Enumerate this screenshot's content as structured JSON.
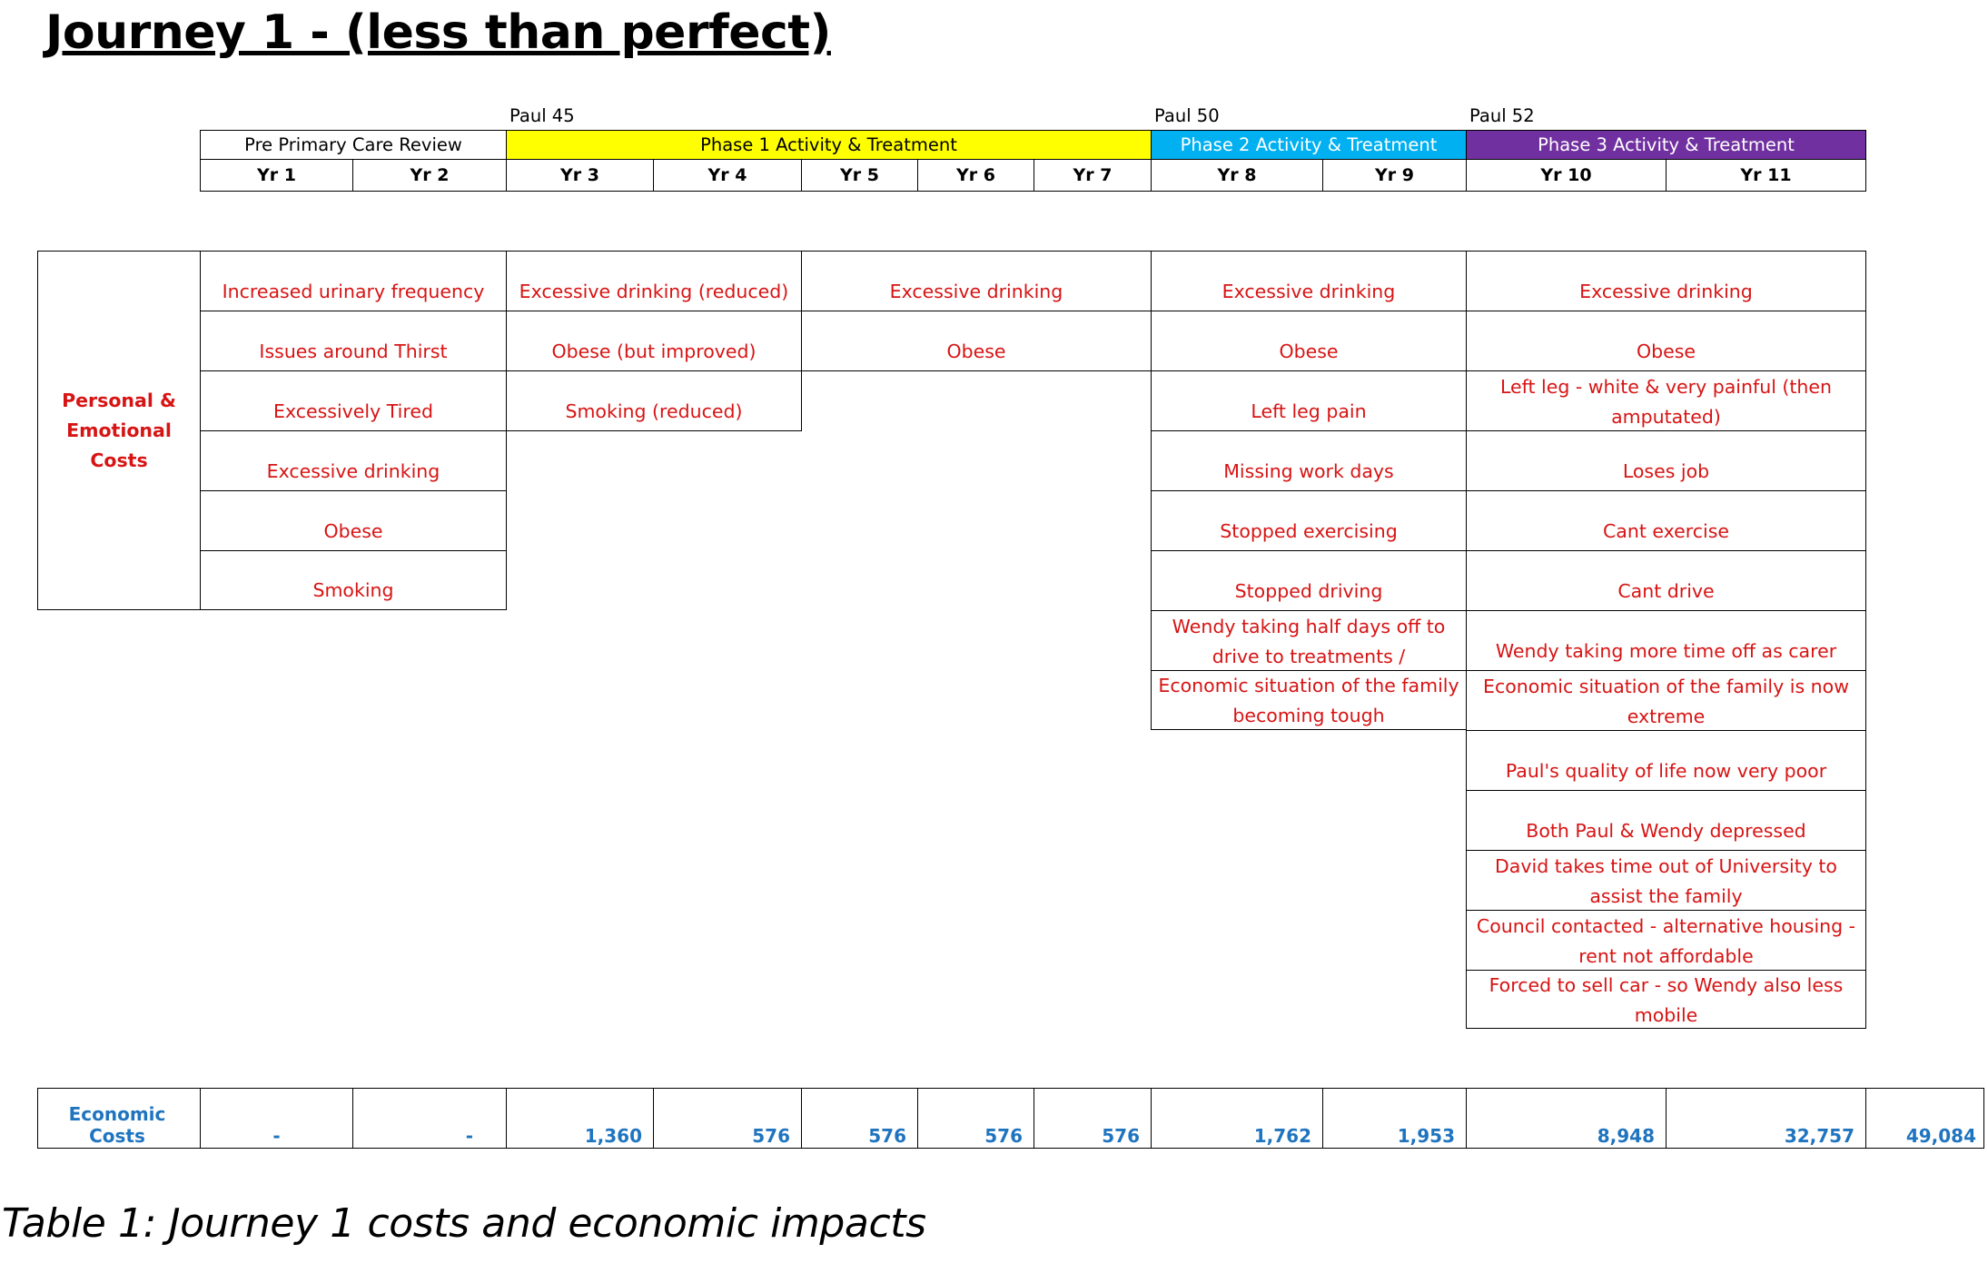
{
  "title": "Journey 1 - (less than perfect)",
  "age_markers": [
    "Paul 45",
    "Paul 50",
    "Paul 52"
  ],
  "phases": {
    "pre": "Pre Primary Care Review",
    "phase1": "Phase 1 Activity & Treatment",
    "phase2": "Phase 2 Activity & Treatment",
    "phase3": "Phase 3 Activity & Treatment"
  },
  "colors": {
    "phase1": "#ffff00",
    "phase2": "#00b0f0",
    "phase3": "#7030a0",
    "red_text": "#d71414",
    "blue_text": "#1f74bf"
  },
  "years": [
    "Yr 1",
    "Yr 2",
    "Yr 3",
    "Yr 4",
    "Yr 5",
    "Yr 6",
    "Yr 7",
    "Yr 8",
    "Yr 9",
    "Yr 10",
    "Yr 11"
  ],
  "personal": {
    "label_line1": "Personal &",
    "label_line2": "Emotional Costs",
    "pre": [
      "Increased urinary frequency",
      "Issues around Thirst",
      "Excessively Tired",
      "Excessive drinking",
      "Obese",
      "Smoking"
    ],
    "yr34": [
      "Excessive drinking (reduced)",
      "Obese (but improved)",
      "Smoking (reduced)"
    ],
    "yr57": [
      "Excessive drinking",
      "Obese"
    ],
    "phase2": [
      "Excessive drinking",
      "Obese",
      "Left leg pain",
      "Missing work days",
      "Stopped exercising",
      "Stopped driving",
      "Wendy taking half days off to drive to treatments /",
      "Economic situation of the family becoming tough"
    ],
    "phase3": [
      "Excessive drinking",
      "Obese",
      "Left leg - white & very painful (then amputated)",
      "Loses job",
      "Cant exercise",
      "Cant drive",
      "Wendy taking more time off as carer",
      "Economic situation of the family is now extreme",
      "Paul's quality of life now very poor",
      "Both Paul & Wendy depressed",
      "David takes time out of University to assist the family",
      "Council contacted - alternative housing - rent not affordable",
      "Forced to sell car - so Wendy also less mobile"
    ]
  },
  "economic": {
    "label": "Economic Costs",
    "values": [
      "-",
      "-",
      "1,360",
      "576",
      "576",
      "576",
      "576",
      "1,762",
      "1,953",
      "8,948",
      "32,757"
    ],
    "total": "49,084"
  },
  "caption": "Table 1: Journey 1 costs and economic impacts"
}
